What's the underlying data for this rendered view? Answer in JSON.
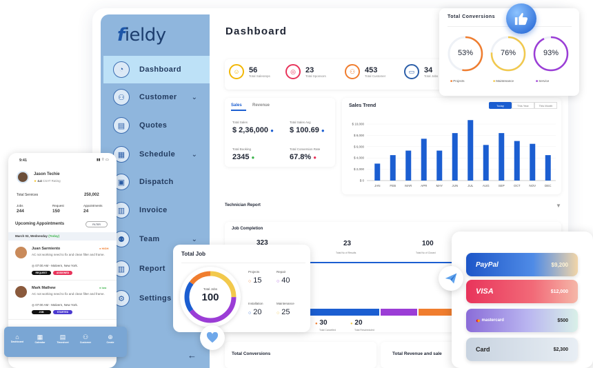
{
  "app": {
    "logo": "ieldy",
    "logo_f": "f"
  },
  "page_title": "Dashboard",
  "sidebar": {
    "items": [
      {
        "label": "Dashboard",
        "icon": "gauge-icon",
        "active": true,
        "chevron": false
      },
      {
        "label": "Customer",
        "icon": "users-icon",
        "active": false,
        "chevron": true
      },
      {
        "label": "Quotes",
        "icon": "document-icon",
        "active": false,
        "chevron": false
      },
      {
        "label": "Schedule",
        "icon": "calendar-icon",
        "active": false,
        "chevron": true
      },
      {
        "label": "Dispatch",
        "icon": "truck-icon",
        "active": false,
        "chevron": false
      },
      {
        "label": "Invoice",
        "icon": "invoice-icon",
        "active": false,
        "chevron": false
      },
      {
        "label": "Team",
        "icon": "team-icon",
        "active": false,
        "chevron": true
      },
      {
        "label": "Report",
        "icon": "chart-icon",
        "active": false,
        "chevron": false
      },
      {
        "label": "Settings",
        "icon": "gear-icon",
        "active": false,
        "chevron": false
      }
    ]
  },
  "stats": [
    {
      "value": "56",
      "label": "Total Salesreps",
      "color": "#f2b705"
    },
    {
      "value": "23",
      "label": "Total Sponsors",
      "color": "#e8345b"
    },
    {
      "value": "453",
      "label": "Total Customer",
      "color": "#f07d2e"
    },
    {
      "value": "34",
      "label": "Total Jobs",
      "color": "#2b5ea8"
    }
  ],
  "sales": {
    "tab_sales": "Sales",
    "tab_revenue": "Revenue",
    "total_sales_label": "Total Sales",
    "total_sales": "$ 2,36,000",
    "avg_label": "Total Sales Avg",
    "avg": "$ 100.69",
    "booking_label": "Total Booking",
    "booking": "2345",
    "conv_label": "Total Conversion Rate",
    "conv": "67.8%"
  },
  "trend": {
    "title": "Sales Trend",
    "btn_today": "Today",
    "btn_week": "This Year",
    "btn_month": "This Month"
  },
  "chart_data": {
    "type": "bar",
    "title": "Sales Trend",
    "categories": [
      "JAN",
      "FEB",
      "MAR",
      "APR",
      "MAY",
      "JUN",
      "JUL",
      "AUG",
      "SEP",
      "OCT",
      "NOV",
      "DEC"
    ],
    "values": [
      3000,
      4500,
      5300,
      7400,
      5300,
      8400,
      10700,
      6300,
      8400,
      7000,
      6500,
      4500
    ],
    "yticks": [
      "$ 0",
      "$ 2,000",
      "$ 4,000",
      "$ 6,000",
      "$ 8,000",
      "$ 10,000"
    ],
    "ylim": [
      0,
      10000
    ]
  },
  "tech_report": "Technician Report",
  "job_completion": {
    "title": "Job Completion",
    "a": "323",
    "b": "23",
    "b_label": "Total No of Results",
    "c": "100",
    "c_label": "Total No of Closed",
    "d": "30",
    "d_label": "Total Cancelled",
    "e": "20",
    "e_label": "Total Rescheduled"
  },
  "bottom": {
    "conv": "Total Conversions",
    "rev": "Total Revenue and sale"
  },
  "phone": {
    "time": "9:41",
    "name": "Jason Techie",
    "rating": "4.4",
    "rating_label": "CSAT Rating",
    "services_label": "Total Services",
    "services": "250,002",
    "jobs_label": "Jobs",
    "jobs": "244",
    "request_label": "Request",
    "request": "150",
    "appt_label": "Appointments",
    "appt": "24",
    "upcoming": "Upcoming Appointments",
    "filter": "FILTER",
    "date": "March 02, Wednesday",
    "today": "(Today)",
    "appts": [
      {
        "name": "Juan Sarmiento",
        "prio": "HIGH",
        "desc": "AC not working need to fix and clean filter and frame.",
        "time": "07:00 AM - Malvern, New York.",
        "tag1": "REQUEST",
        "tag2": "ASSIGNED"
      },
      {
        "name": "Mark Mathew",
        "prio": "low",
        "desc": "AC not working need to fix and clean filter and frame.",
        "time": "07:00 AM - Malvern, New York.",
        "tag1": "JOB",
        "tag2": "STARTED"
      }
    ],
    "tabs": [
      "Dashboard",
      "Calendar",
      "Timesheet",
      "Customer",
      "Create"
    ]
  },
  "total_job": {
    "title": "Total Job",
    "center_label": "Total Jobs",
    "center": "100",
    "projects_label": "Projects",
    "projects": "15",
    "repair_label": "Repair",
    "repair": "40",
    "install_label": "Installation",
    "install": "20",
    "maint_label": "Maintenance",
    "maint": "25"
  },
  "conversions": {
    "title": "Total Conversions",
    "items": [
      {
        "value": "53%",
        "label": "Projects",
        "color": "#f07d2e",
        "pct": 53
      },
      {
        "value": "76%",
        "label": "Maintenance",
        "color": "#f2c94c",
        "pct": 76
      },
      {
        "value": "93%",
        "label": "Service",
        "color": "#9b3dd6",
        "pct": 93
      }
    ]
  },
  "cards": [
    {
      "brand": "PayPal",
      "amount": "$9,200"
    },
    {
      "brand": "VISA",
      "amount": "$12,000"
    },
    {
      "brand": "mastercard",
      "amount": "$500"
    },
    {
      "brand": "Card",
      "amount": "$2,300"
    }
  ]
}
